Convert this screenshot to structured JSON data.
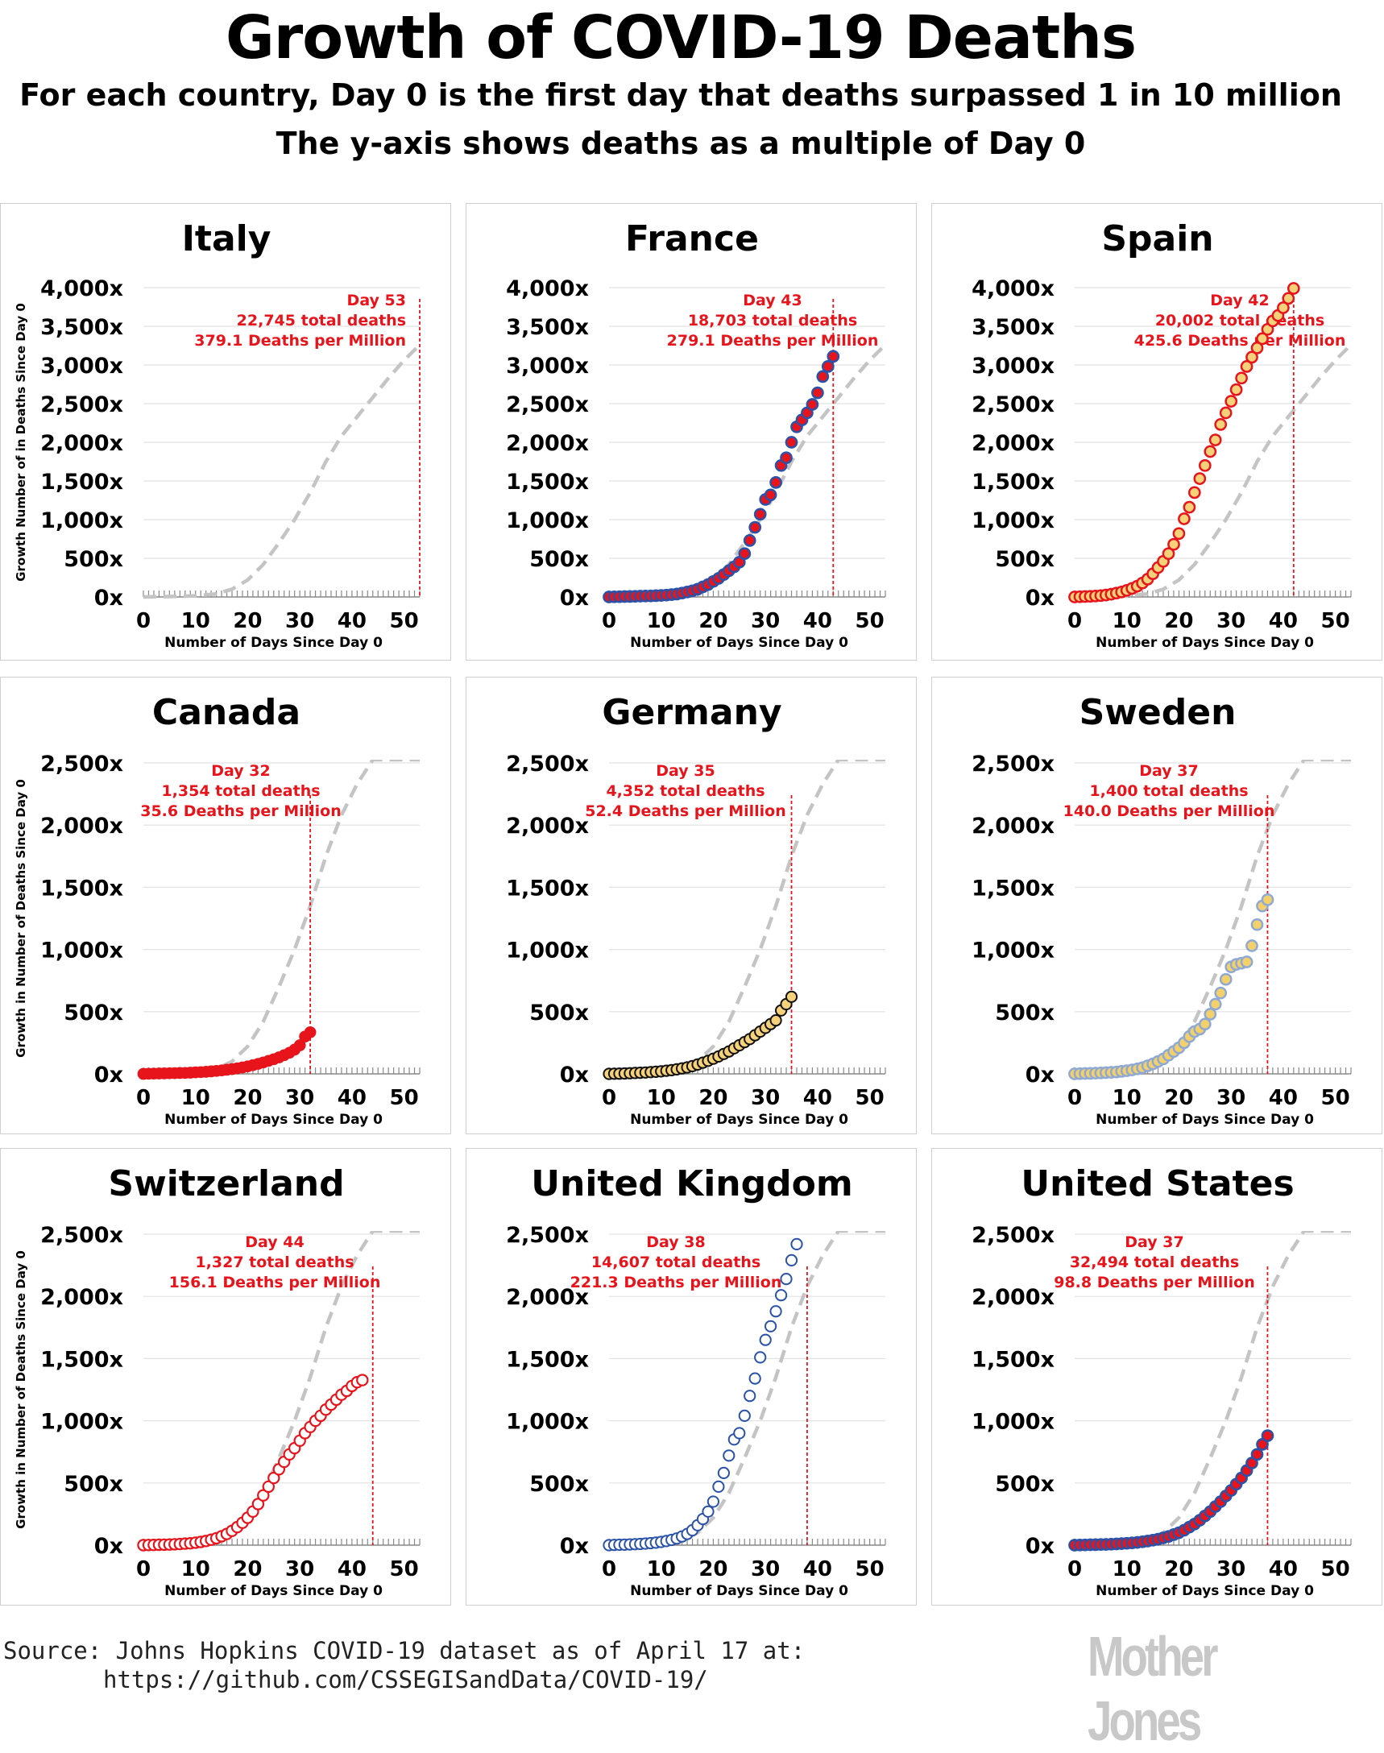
{
  "header": {
    "title": "Growth of COVID-19 Deaths",
    "subtitle_1": "For each country, Day 0 is the first day that deaths surpassed 1 in 10 million",
    "subtitle_2": "The y-axis shows deaths as a multiple of Day 0"
  },
  "footer": {
    "source_line": "Source: Johns Hopkins COVID-19 dataset as of April 17 at:",
    "source_url": "https://github.com/CSSEGISandData/COVID-19/",
    "logo_text": "Mother Jones"
  },
  "colors": {
    "reference_line": "#c4c4c4",
    "annotation": "#e8141c",
    "red": "#e8141c",
    "blue": "#2a52a8",
    "yellow": "#f5d27a",
    "sweden_yellow": "#f3d06a",
    "light_blue": "#8ea9d6"
  },
  "chart_data": [
    {
      "type": "scatter",
      "title": "Italy",
      "xlabel": "Number of Days Since Day 0",
      "ylabel": "Growth Number of in Deaths Since Day 0",
      "xlim": [
        0,
        53
      ],
      "ylim": [
        0,
        4000
      ],
      "yticks": [
        "0x",
        "500x",
        "1,000x",
        "1,500x",
        "2,000x",
        "2,500x",
        "3,000x",
        "3,500x",
        "4,000x"
      ],
      "xticks": [
        "0",
        "10",
        "20",
        "30",
        "40",
        "50"
      ],
      "annotation": [
        "Day 53",
        "22,745 total deaths",
        "379.1 Deaths per Million"
      ],
      "marker_day": 53,
      "marker_style": "none",
      "values": []
    },
    {
      "type": "scatter",
      "title": "France",
      "xlabel": "Number of Days Since Day 0",
      "ylabel": "",
      "xlim": [
        0,
        53
      ],
      "ylim": [
        0,
        4000
      ],
      "yticks": [
        "0x",
        "500x",
        "1,000x",
        "1,500x",
        "2,000x",
        "2,500x",
        "3,000x",
        "3,500x",
        "4,000x"
      ],
      "xticks": [
        "0",
        "10",
        "20",
        "30",
        "40",
        "50"
      ],
      "annotation": [
        "Day 43",
        "18,703 total deaths",
        "279.1 Deaths per Million"
      ],
      "marker_day": 43,
      "marker_style": "red-fill-blue-edge",
      "values": [
        0,
        2,
        3,
        5,
        6,
        8,
        10,
        12,
        14,
        17,
        20,
        24,
        30,
        38,
        50,
        65,
        80,
        100,
        130,
        160,
        200,
        240,
        290,
        340,
        390,
        450,
        560,
        730,
        900,
        1070,
        1260,
        1320,
        1480,
        1700,
        1800,
        2000,
        2200,
        2290,
        2380,
        2490,
        2640,
        2850,
        2980,
        3110
      ]
    },
    {
      "type": "scatter",
      "title": "Spain",
      "xlabel": "Number of Days Since Day 0",
      "ylabel": "",
      "xlim": [
        0,
        53
      ],
      "ylim": [
        0,
        4000
      ],
      "yticks": [
        "0x",
        "500x",
        "1,000x",
        "1,500x",
        "2,000x",
        "2,500x",
        "3,000x",
        "3,500x",
        "4,000x"
      ],
      "xticks": [
        "0",
        "10",
        "20",
        "30",
        "40",
        "50"
      ],
      "annotation": [
        "Day 42",
        "20,002 total deaths",
        "425.6 Deaths per Million"
      ],
      "marker_day": 42,
      "marker_style": "yellow-fill-red-edge",
      "values": [
        0,
        3,
        5,
        8,
        12,
        18,
        25,
        35,
        50,
        65,
        85,
        110,
        140,
        180,
        230,
        300,
        380,
        460,
        560,
        680,
        820,
        1010,
        1160,
        1350,
        1530,
        1700,
        1880,
        2030,
        2230,
        2380,
        2530,
        2680,
        2830,
        2980,
        3100,
        3220,
        3340,
        3460,
        3570,
        3640,
        3740,
        3860,
        3990
      ]
    },
    {
      "type": "scatter",
      "title": "Canada",
      "xlabel": "Number of Days Since Day 0",
      "ylabel": "Growth in Number of Deaths Since Day 0",
      "xlim": [
        0,
        53
      ],
      "ylim": [
        0,
        2500
      ],
      "yticks": [
        "0x",
        "500x",
        "1,000x",
        "1,500x",
        "2,000x",
        "2,500x"
      ],
      "xticks": [
        "0",
        "10",
        "20",
        "30",
        "40",
        "50"
      ],
      "annotation": [
        "Day 32",
        "1,354 total deaths",
        "35.6 Deaths per Million"
      ],
      "marker_day": 32,
      "marker_style": "red-solid",
      "values": [
        0,
        1,
        2,
        3,
        4,
        5,
        6,
        7,
        8,
        10,
        12,
        14,
        17,
        20,
        24,
        28,
        33,
        38,
        45,
        52,
        60,
        70,
        80,
        92,
        105,
        118,
        133,
        150,
        170,
        195,
        230,
        300,
        335
      ]
    },
    {
      "type": "scatter",
      "title": "Germany",
      "xlabel": "Number of Days Since Day 0",
      "ylabel": "",
      "xlim": [
        0,
        53
      ],
      "ylim": [
        0,
        2500
      ],
      "yticks": [
        "0x",
        "500x",
        "1,000x",
        "1,500x",
        "2,000x",
        "2,500x"
      ],
      "xticks": [
        "0",
        "10",
        "20",
        "30",
        "40",
        "50"
      ],
      "annotation": [
        "Day 35",
        "4,352 total deaths",
        "52.4 Deaths per Million"
      ],
      "marker_day": 35,
      "marker_style": "yellow-fill-black-edge",
      "values": [
        0,
        1,
        2,
        3,
        5,
        7,
        9,
        11,
        14,
        17,
        20,
        25,
        30,
        36,
        44,
        52,
        62,
        75,
        90,
        105,
        122,
        140,
        160,
        180,
        205,
        230,
        255,
        280,
        310,
        340,
        370,
        400,
        430,
        510,
        560,
        620
      ]
    },
    {
      "type": "scatter",
      "title": "Sweden",
      "xlabel": "Number of Days Since Day 0",
      "ylabel": "",
      "xlim": [
        0,
        53
      ],
      "ylim": [
        0,
        2500
      ],
      "yticks": [
        "0x",
        "500x",
        "1,000x",
        "1,500x",
        "2,000x",
        "2,500x"
      ],
      "xticks": [
        "0",
        "10",
        "20",
        "30",
        "40",
        "50"
      ],
      "annotation": [
        "Day 37",
        "1,400 total deaths",
        "140.0 Deaths per Million"
      ],
      "marker_day": 37,
      "marker_style": "yellow-fill-blue-edge",
      "values": [
        0,
        2,
        3,
        4,
        6,
        8,
        10,
        12,
        15,
        20,
        25,
        32,
        40,
        50,
        65,
        80,
        100,
        120,
        150,
        180,
        210,
        250,
        300,
        340,
        360,
        400,
        480,
        560,
        650,
        760,
        860,
        880,
        890,
        900,
        1030,
        1200,
        1350,
        1400
      ]
    },
    {
      "type": "scatter",
      "title": "Switzerland",
      "xlabel": "Number of Days Since Day 0",
      "ylabel": "Growth in Number of Deaths Since Day 0",
      "xlim": [
        0,
        53
      ],
      "ylim": [
        0,
        2500
      ],
      "yticks": [
        "0x",
        "500x",
        "1,000x",
        "1,500x",
        "2,000x",
        "2,500x"
      ],
      "xticks": [
        "0",
        "10",
        "20",
        "30",
        "40",
        "50"
      ],
      "annotation": [
        "Day 44",
        "1,327 total deaths",
        "156.1 Deaths per Million"
      ],
      "marker_day": 44,
      "marker_style": "red-open",
      "values": [
        0,
        1,
        2,
        3,
        4,
        5,
        7,
        9,
        12,
        15,
        20,
        26,
        34,
        44,
        56,
        72,
        90,
        115,
        145,
        180,
        220,
        270,
        330,
        400,
        470,
        540,
        610,
        670,
        730,
        780,
        840,
        900,
        950,
        1000,
        1040,
        1090,
        1130,
        1170,
        1210,
        1240,
        1280,
        1310,
        1327
      ]
    },
    {
      "type": "scatter",
      "title": "United Kingdom",
      "xlabel": "Number of Days Since Day 0",
      "ylabel": "",
      "xlim": [
        0,
        53
      ],
      "ylim": [
        0,
        2500
      ],
      "yticks": [
        "0x",
        "500x",
        "1,000x",
        "1,500x",
        "2,000x",
        "2,500x"
      ],
      "xticks": [
        "0",
        "10",
        "20",
        "30",
        "40",
        "50"
      ],
      "annotation": [
        "Day 38",
        "14,607 total deaths",
        "221.3 Deaths per Million"
      ],
      "marker_day": 38,
      "marker_style": "blue-open",
      "values": [
        0,
        2,
        3,
        4,
        6,
        8,
        10,
        13,
        16,
        20,
        26,
        33,
        42,
        54,
        70,
        90,
        120,
        160,
        210,
        270,
        350,
        470,
        580,
        720,
        850,
        900,
        1040,
        1200,
        1340,
        1510,
        1650,
        1760,
        1880,
        2010,
        2140,
        2290,
        2420
      ]
    },
    {
      "type": "scatter",
      "title": "United States",
      "xlabel": "Number of Days Since Day 0",
      "ylabel": "",
      "xlim": [
        0,
        53
      ],
      "ylim": [
        0,
        2500
      ],
      "yticks": [
        "0x",
        "500x",
        "1,000x",
        "1,500x",
        "2,000x",
        "2,500x"
      ],
      "xticks": [
        "0",
        "10",
        "20",
        "30",
        "40",
        "50"
      ],
      "annotation": [
        "Day 37",
        "32,494 total deaths",
        "98.8 Deaths per Million"
      ],
      "marker_day": 37,
      "marker_style": "red-fill-blue-edge",
      "values": [
        0,
        1,
        2,
        3,
        4,
        5,
        6,
        8,
        10,
        12,
        15,
        18,
        22,
        27,
        33,
        40,
        48,
        58,
        70,
        85,
        100,
        120,
        145,
        170,
        200,
        235,
        270,
        310,
        350,
        395,
        440,
        490,
        540,
        600,
        660,
        730,
        810,
        880
      ]
    }
  ]
}
